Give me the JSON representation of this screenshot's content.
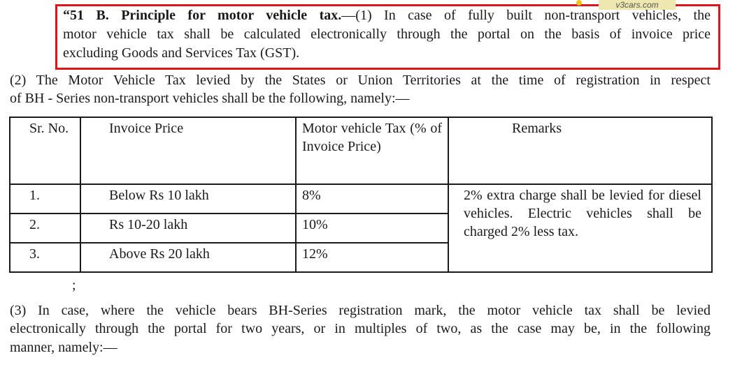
{
  "watermark": "v3cars.com",
  "highlight_color": "#e0141b",
  "para1": {
    "heading": "“51 B. Principle for motor vehicle tax.",
    "lines": [
      "—(1) In case of fully built non-transport vehicles, the",
      "motor vehicle tax shall be calculated electronically through the portal on the basis of invoice price",
      "excluding Goods and Services Tax (GST)."
    ]
  },
  "para2": {
    "lines": [
      "(2) The Motor Vehicle Tax levied by the States or Union Territories at the time of registration in respect",
      "of BH - Series non-transport vehicles shall be the following, namely:—"
    ]
  },
  "table": {
    "headers": [
      "Sr. No.",
      "Invoice Price",
      "Motor vehicle Tax (% of Invoice Price)",
      "Remarks"
    ],
    "rows": [
      {
        "sr": "1.",
        "price": "Below Rs 10 lakh",
        "tax": "8%"
      },
      {
        "sr": "2.",
        "price": "Rs 10-20 lakh",
        "tax": "10%"
      },
      {
        "sr": "3.",
        "price": "Above Rs 20 lakh",
        "tax": "12%"
      }
    ],
    "remarks": "2% extra charge shall be levied for diesel vehicles. Electric vehicles shall be charged 2% less tax."
  },
  "semicolon": ";",
  "para3": {
    "lines": [
      "(3) In case, where the vehicle bears BH-Series registration mark, the motor vehicle tax shall be levied",
      "electronically through the portal for two years, or in multiples of two, as the case may be, in the following",
      "manner, namely:—"
    ]
  }
}
